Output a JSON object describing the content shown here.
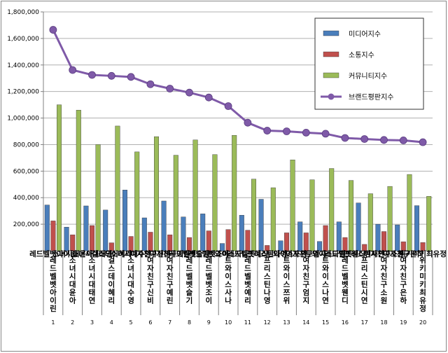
{
  "chart_data": {
    "type": "bar",
    "title": "",
    "xlabel": "",
    "ylabel": "",
    "ylim": [
      0,
      1800000
    ],
    "yticks": [
      "-",
      "200,000",
      "400,000",
      "600,000",
      "800,000",
      "1,000,000",
      "1,200,000",
      "1,400,000",
      "1,600,000",
      "1,800,000"
    ],
    "grid": true,
    "legend_position": "top-right",
    "ranks": [
      "1",
      "2",
      "3",
      "4",
      "5",
      "6",
      "7",
      "8",
      "9",
      "10",
      "11",
      "12",
      "13",
      "14",
      "15",
      "16",
      "17",
      "18",
      "19",
      "20"
    ],
    "categories": [
      "레드벨벳아이린",
      "소녀시대윤아",
      "소녀시대태연",
      "걸스데이혜리",
      "소녀시대수영",
      "여자친구신비",
      "여자친구예린",
      "레드벨벳슬기",
      "레드벨벳조이",
      "트와이스사나",
      "레드벨벳예리",
      "프리스틴나영",
      "트와이스쯔위",
      "여자친구엄지",
      "트와이스나연",
      "레드벨벳웬디",
      "프리스틴시연",
      "여자친구소원",
      "여자친구은하",
      "위키미키최유정"
    ],
    "series": [
      {
        "name": "미디어지수",
        "type": "bar",
        "color": "#4a7ebb",
        "values": [
          345000,
          178000,
          338000,
          307000,
          458000,
          248000,
          375000,
          255000,
          278000,
          55000,
          268000,
          388000,
          75000,
          218000,
          70000,
          218000,
          360000,
          200000,
          195000,
          340000
        ]
      },
      {
        "name": "소통지수",
        "type": "bar",
        "color": "#c0504d",
        "values": [
          225000,
          120000,
          190000,
          60000,
          108000,
          140000,
          120000,
          100000,
          150000,
          160000,
          155000,
          40000,
          135000,
          135000,
          190000,
          100000,
          48000,
          145000,
          68000,
          62000
        ]
      },
      {
        "name": "커뮤니티지수",
        "type": "bar",
        "color": "#9bbb59",
        "values": [
          1100000,
          1060000,
          800000,
          940000,
          745000,
          860000,
          720000,
          835000,
          725000,
          870000,
          540000,
          475000,
          685000,
          535000,
          620000,
          530000,
          430000,
          485000,
          575000,
          410000
        ]
      },
      {
        "name": "브랜드평판지수",
        "type": "line",
        "color": "#7f5aa8",
        "values": [
          1665000,
          1362000,
          1325000,
          1318000,
          1310000,
          1255000,
          1222000,
          1192000,
          1155000,
          1090000,
          965000,
          905000,
          900000,
          890000,
          882000,
          850000,
          842000,
          835000,
          832000,
          818000
        ]
      }
    ]
  }
}
